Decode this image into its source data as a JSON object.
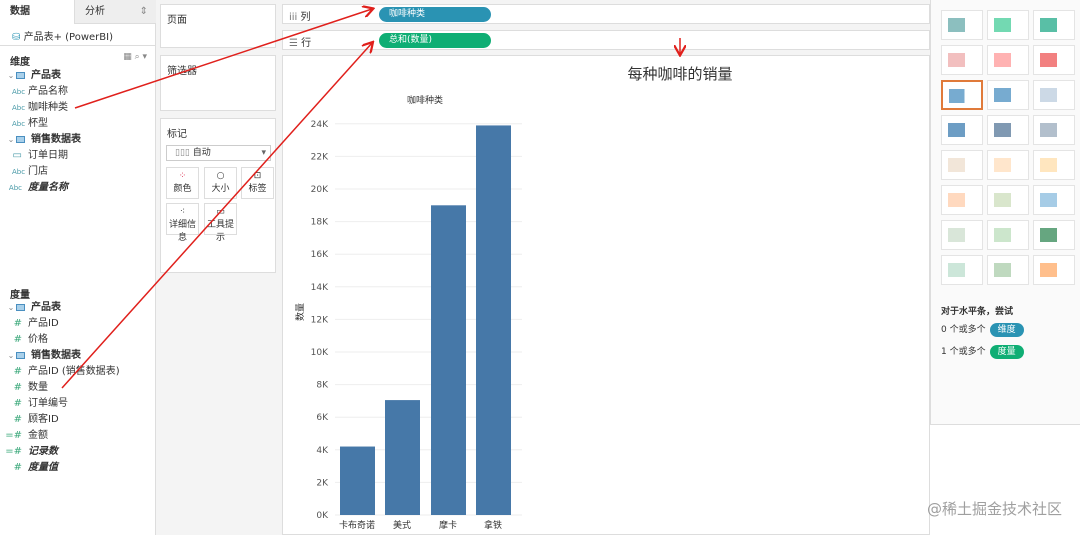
{
  "left_panel": {
    "tabs": [
      "数据",
      "分析"
    ],
    "datasource": "产品表+ (PowerBI)",
    "dimensions_title": "维度",
    "dimensions": [
      {
        "label": "产品表",
        "type": "table"
      },
      {
        "label": "产品名称",
        "type": "Abc"
      },
      {
        "label": "咖啡种类",
        "type": "Abc"
      },
      {
        "label": "杯型",
        "type": "Abc"
      },
      {
        "label": "销售数据表",
        "type": "table"
      },
      {
        "label": "订单日期",
        "type": "date"
      },
      {
        "label": "门店",
        "type": "Abc"
      },
      {
        "label": "度量名称",
        "type": "Abc"
      }
    ],
    "measures_title": "度量",
    "measures": [
      {
        "label": "产品表",
        "type": "table"
      },
      {
        "label": "产品ID",
        "type": "#"
      },
      {
        "label": "价格",
        "type": "#"
      },
      {
        "label": "销售数据表",
        "type": "table"
      },
      {
        "label": "产品ID (销售数据表)",
        "type": "#"
      },
      {
        "label": "数量",
        "type": "#"
      },
      {
        "label": "订单编号",
        "type": "#"
      },
      {
        "label": "顾客ID",
        "type": "#"
      },
      {
        "label": "金额",
        "type": "calc#"
      },
      {
        "label": "记录数",
        "type": "calc#"
      },
      {
        "label": "度量值",
        "type": "#"
      }
    ],
    "abc": "Abc"
  },
  "cards": {
    "pages": "页面",
    "filters": "筛选器",
    "marks": "标记",
    "mark_type": "自动",
    "mark_buttons": [
      "颜色",
      "大小",
      "标签",
      "详细信息",
      "工具提示"
    ]
  },
  "shelves": {
    "columns_label": "列",
    "rows_label": "行",
    "columns_pill": "咖啡种类",
    "rows_pill": "总和(数量)"
  },
  "colors": {
    "dimension": "#2a93b3",
    "measure": "#0fae74",
    "bar": "#4678a8",
    "arrow": "#e0201c"
  },
  "chart_data": {
    "type": "bar",
    "title": "每种咖啡的销量",
    "header": "咖啡种类",
    "ylabel": "数量",
    "categories": [
      "卡布奇诺",
      "美式",
      "摩卡",
      "拿铁"
    ],
    "values": [
      4200,
      7050,
      19000,
      23900
    ],
    "ylim": [
      0,
      24000
    ],
    "yticks": [
      "0K",
      "2K",
      "4K",
      "6K",
      "8K",
      "10K",
      "12K",
      "14K",
      "16K",
      "18K",
      "20K",
      "22K",
      "24K"
    ],
    "grid": true
  },
  "show_me": {
    "hint": "对于水平条，尝试",
    "dim_req": "0 个或多个",
    "dim_pill": "维度",
    "mea_req": "1 个或多个",
    "mea_pill": "度量",
    "selected": "horizontal-bars"
  },
  "watermark": "@稀土掘金技术社区"
}
